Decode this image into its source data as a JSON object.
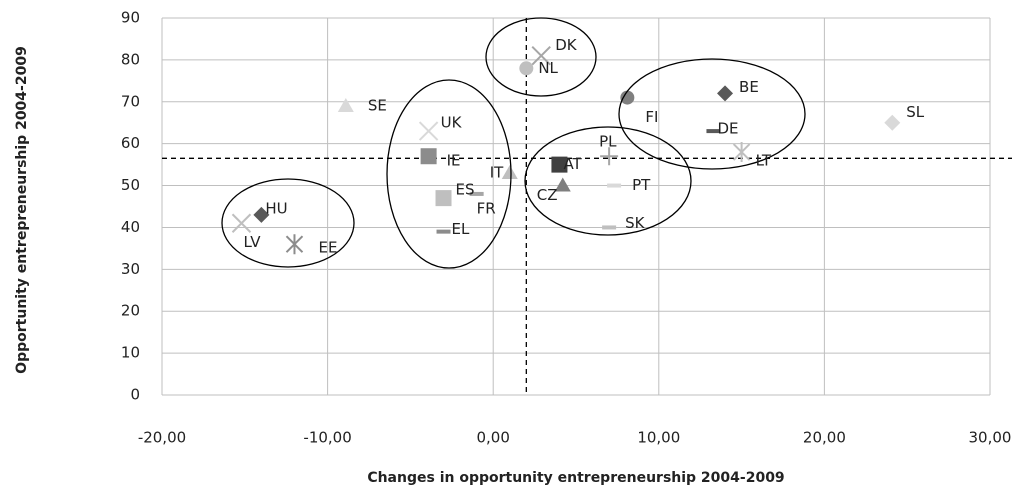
{
  "chart_data": {
    "type": "scatter",
    "x_label": "Changes in opportunity entrepreneurship 2004-2009",
    "y_label": "Opportunity entrepreneurship 2004-2009",
    "xlim": [
      -20,
      30
    ],
    "ylim": [
      0,
      90
    ],
    "xticks": [
      {
        "value": -20,
        "label": "-20,00"
      },
      {
        "value": -10,
        "label": "-10,00"
      },
      {
        "value": 0,
        "label": "0,00"
      },
      {
        "value": 10,
        "label": "10,00"
      },
      {
        "value": 20,
        "label": "20,00"
      },
      {
        "value": 30,
        "label": "30,00"
      }
    ],
    "yticks": [
      0,
      10,
      20,
      30,
      40,
      50,
      60,
      70,
      80,
      90
    ],
    "grid": true,
    "reference_lines": {
      "x": 2,
      "y": 56.5
    },
    "points": [
      {
        "label": "DK",
        "x": 2.9,
        "y": 81,
        "marker": "x",
        "color": "#a6a6a6"
      },
      {
        "label": "NL",
        "x": 2.0,
        "y": 78,
        "marker": "circle",
        "color": "#bfbfbf"
      },
      {
        "label": "SE",
        "x": -8.9,
        "y": 69,
        "marker": "triangle",
        "color": "#d9d9d9"
      },
      {
        "label": "UK",
        "x": -3.9,
        "y": 63,
        "marker": "x",
        "color": "#d9d9d9"
      },
      {
        "label": "IE",
        "x": -3.9,
        "y": 57,
        "marker": "square",
        "color": "#8c8c8c"
      },
      {
        "label": "ES",
        "x": -3.0,
        "y": 47,
        "marker": "square",
        "color": "#bfbfbf"
      },
      {
        "label": "FR",
        "x": -1.0,
        "y": 48,
        "marker": "dash",
        "color": "#a6a6a6"
      },
      {
        "label": "EL",
        "x": -3.0,
        "y": 39,
        "marker": "dash",
        "color": "#8c8c8c"
      },
      {
        "label": "IT",
        "x": 1.0,
        "y": 53,
        "marker": "triangle",
        "color": "#bfbfbf"
      },
      {
        "label": "AT",
        "x": 4.0,
        "y": 55,
        "marker": "square",
        "color": "#404040"
      },
      {
        "label": "CZ",
        "x": 4.2,
        "y": 50,
        "marker": "triangle",
        "color": "#7f7f7f"
      },
      {
        "label": "PL",
        "x": 7.0,
        "y": 57,
        "marker": "plus",
        "color": "#a6a6a6"
      },
      {
        "label": "PT",
        "x": 7.3,
        "y": 50,
        "marker": "dash",
        "color": "#d9d9d9"
      },
      {
        "label": "SK",
        "x": 7.0,
        "y": 40,
        "marker": "dash",
        "color": "#bfbfbf"
      },
      {
        "label": "FI",
        "x": 8.1,
        "y": 71,
        "marker": "circle",
        "color": "#7f7f7f"
      },
      {
        "label": "BE",
        "x": 14.0,
        "y": 72,
        "marker": "diamond",
        "color": "#595959"
      },
      {
        "label": "DE",
        "x": 13.3,
        "y": 63,
        "marker": "dash",
        "color": "#595959"
      },
      {
        "label": "LT",
        "x": 15.0,
        "y": 58,
        "marker": "star",
        "color": "#bfbfbf"
      },
      {
        "label": "SL",
        "x": 24.1,
        "y": 65,
        "marker": "diamond",
        "color": "#d9d9d9"
      },
      {
        "label": "HU",
        "x": -14.0,
        "y": 43,
        "marker": "diamond",
        "color": "#595959"
      },
      {
        "label": "LV",
        "x": -15.2,
        "y": 41,
        "marker": "x",
        "color": "#bfbfbf"
      },
      {
        "label": "EE",
        "x": -12.0,
        "y": 36,
        "marker": "star",
        "color": "#8c8c8c"
      }
    ]
  }
}
